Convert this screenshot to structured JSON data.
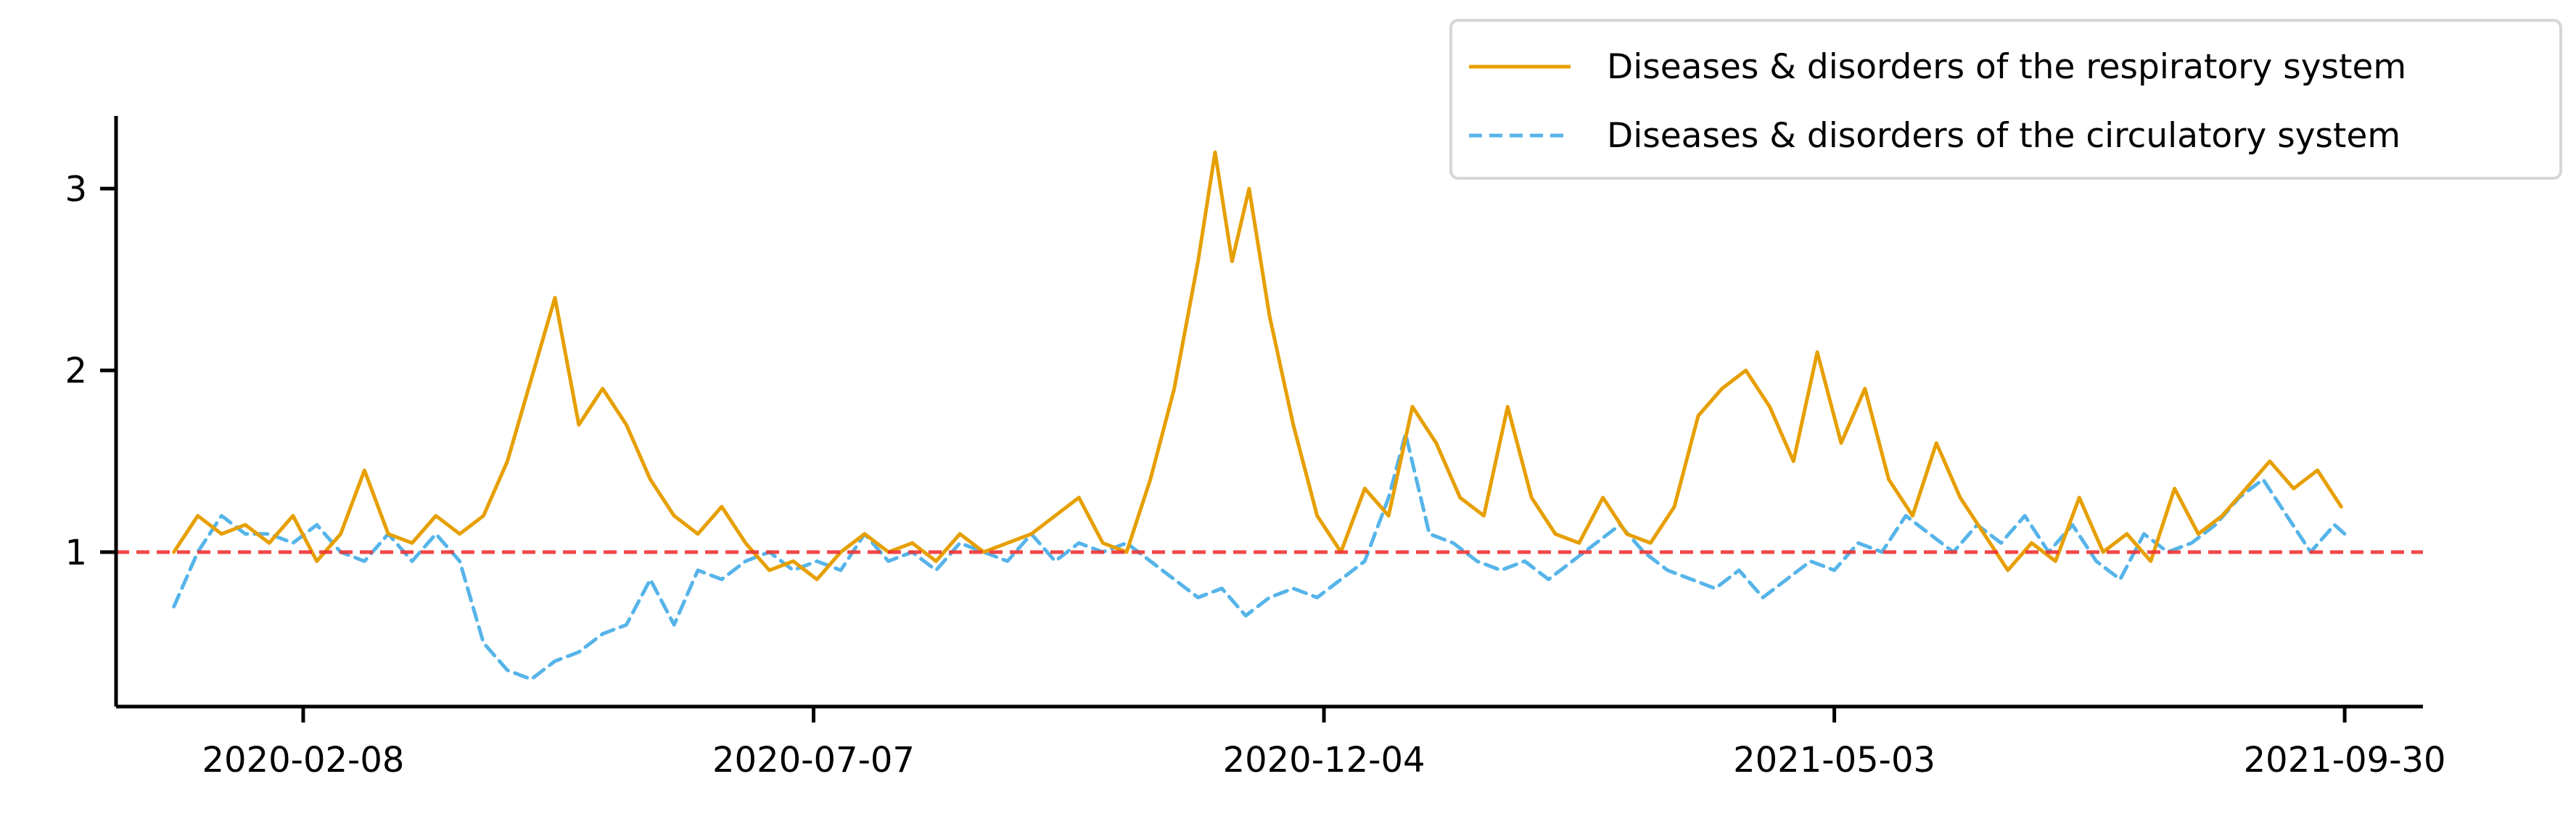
{
  "chart_data": {
    "type": "line",
    "title": "",
    "xlabel": "",
    "ylabel": "",
    "x_ticks": [
      "2020-02-08",
      "2020-07-07",
      "2020-12-04",
      "2021-05-03",
      "2021-09-30"
    ],
    "y_ticks": [
      "1",
      "2",
      "3"
    ],
    "xlim": [
      "2019-12-15",
      "2021-10-23"
    ],
    "ylim": [
      0.15,
      3.4
    ],
    "grid": false,
    "legend_position": "top-right",
    "reference_line": {
      "y": 1,
      "style": "dashed",
      "color": "#ee3333"
    },
    "series": [
      {
        "name": "Diseases & disorders of the respiratory system",
        "color": "#e69f00",
        "style": "solid",
        "points": [
          [
            "2020-01-01",
            1.0
          ],
          [
            "2020-01-08",
            1.2
          ],
          [
            "2020-01-15",
            1.1
          ],
          [
            "2020-01-22",
            1.15
          ],
          [
            "2020-01-29",
            1.05
          ],
          [
            "2020-02-05",
            1.2
          ],
          [
            "2020-02-12",
            0.95
          ],
          [
            "2020-02-19",
            1.1
          ],
          [
            "2020-02-26",
            1.45
          ],
          [
            "2020-03-04",
            1.1
          ],
          [
            "2020-03-11",
            1.05
          ],
          [
            "2020-03-18",
            1.2
          ],
          [
            "2020-03-25",
            1.1
          ],
          [
            "2020-04-01",
            1.2
          ],
          [
            "2020-04-08",
            1.5
          ],
          [
            "2020-04-15",
            1.95
          ],
          [
            "2020-04-22",
            2.4
          ],
          [
            "2020-04-29",
            1.7
          ],
          [
            "2020-05-06",
            1.9
          ],
          [
            "2020-05-13",
            1.7
          ],
          [
            "2020-05-20",
            1.4
          ],
          [
            "2020-05-27",
            1.2
          ],
          [
            "2020-06-03",
            1.1
          ],
          [
            "2020-06-10",
            1.25
          ],
          [
            "2020-06-17",
            1.05
          ],
          [
            "2020-06-24",
            0.9
          ],
          [
            "2020-07-01",
            0.95
          ],
          [
            "2020-07-08",
            0.85
          ],
          [
            "2020-07-15",
            1.0
          ],
          [
            "2020-07-22",
            1.1
          ],
          [
            "2020-07-29",
            1.0
          ],
          [
            "2020-08-05",
            1.05
          ],
          [
            "2020-08-12",
            0.95
          ],
          [
            "2020-08-19",
            1.1
          ],
          [
            "2020-08-26",
            1.0
          ],
          [
            "2020-09-02",
            1.05
          ],
          [
            "2020-09-09",
            1.1
          ],
          [
            "2020-09-16",
            1.2
          ],
          [
            "2020-09-23",
            1.3
          ],
          [
            "2020-09-30",
            1.05
          ],
          [
            "2020-10-07",
            1.0
          ],
          [
            "2020-10-14",
            1.4
          ],
          [
            "2020-10-21",
            1.9
          ],
          [
            "2020-10-28",
            2.6
          ],
          [
            "2020-11-02",
            3.2
          ],
          [
            "2020-11-07",
            2.6
          ],
          [
            "2020-11-12",
            3.0
          ],
          [
            "2020-11-18",
            2.3
          ],
          [
            "2020-11-25",
            1.7
          ],
          [
            "2020-12-02",
            1.2
          ],
          [
            "2020-12-09",
            1.0
          ],
          [
            "2020-12-16",
            1.35
          ],
          [
            "2020-12-23",
            1.2
          ],
          [
            "2020-12-30",
            1.8
          ],
          [
            "2021-01-06",
            1.6
          ],
          [
            "2021-01-13",
            1.3
          ],
          [
            "2021-01-20",
            1.2
          ],
          [
            "2021-01-27",
            1.8
          ],
          [
            "2021-02-03",
            1.3
          ],
          [
            "2021-02-10",
            1.1
          ],
          [
            "2021-02-17",
            1.05
          ],
          [
            "2021-02-24",
            1.3
          ],
          [
            "2021-03-03",
            1.1
          ],
          [
            "2021-03-10",
            1.05
          ],
          [
            "2021-03-17",
            1.25
          ],
          [
            "2021-03-24",
            1.75
          ],
          [
            "2021-03-31",
            1.9
          ],
          [
            "2021-04-07",
            2.0
          ],
          [
            "2021-04-14",
            1.8
          ],
          [
            "2021-04-21",
            1.5
          ],
          [
            "2021-04-28",
            2.1
          ],
          [
            "2021-05-05",
            1.6
          ],
          [
            "2021-05-12",
            1.9
          ],
          [
            "2021-05-19",
            1.4
          ],
          [
            "2021-05-26",
            1.2
          ],
          [
            "2021-06-02",
            1.6
          ],
          [
            "2021-06-09",
            1.3
          ],
          [
            "2021-06-16",
            1.1
          ],
          [
            "2021-06-23",
            0.9
          ],
          [
            "2021-06-30",
            1.05
          ],
          [
            "2021-07-07",
            0.95
          ],
          [
            "2021-07-14",
            1.3
          ],
          [
            "2021-07-21",
            1.0
          ],
          [
            "2021-07-28",
            1.1
          ],
          [
            "2021-08-04",
            0.95
          ],
          [
            "2021-08-11",
            1.35
          ],
          [
            "2021-08-18",
            1.1
          ],
          [
            "2021-08-25",
            1.2
          ],
          [
            "2021-09-01",
            1.35
          ],
          [
            "2021-09-08",
            1.5
          ],
          [
            "2021-09-15",
            1.35
          ],
          [
            "2021-09-22",
            1.45
          ],
          [
            "2021-09-29",
            1.25
          ]
        ]
      },
      {
        "name": "Diseases & disorders of the circulatory system",
        "color": "#56b4e9",
        "style": "dashed",
        "points": [
          [
            "2020-01-01",
            0.7
          ],
          [
            "2020-01-08",
            1.0
          ],
          [
            "2020-01-15",
            1.2
          ],
          [
            "2020-01-22",
            1.1
          ],
          [
            "2020-01-29",
            1.1
          ],
          [
            "2020-02-05",
            1.05
          ],
          [
            "2020-02-12",
            1.15
          ],
          [
            "2020-02-19",
            1.0
          ],
          [
            "2020-02-26",
            0.95
          ],
          [
            "2020-03-04",
            1.1
          ],
          [
            "2020-03-11",
            0.95
          ],
          [
            "2020-03-18",
            1.1
          ],
          [
            "2020-03-25",
            0.95
          ],
          [
            "2020-04-01",
            0.5
          ],
          [
            "2020-04-08",
            0.35
          ],
          [
            "2020-04-15",
            0.3
          ],
          [
            "2020-04-22",
            0.4
          ],
          [
            "2020-04-29",
            0.45
          ],
          [
            "2020-05-06",
            0.55
          ],
          [
            "2020-05-13",
            0.6
          ],
          [
            "2020-05-20",
            0.85
          ],
          [
            "2020-05-27",
            0.6
          ],
          [
            "2020-06-03",
            0.9
          ],
          [
            "2020-06-10",
            0.85
          ],
          [
            "2020-06-17",
            0.95
          ],
          [
            "2020-06-24",
            1.0
          ],
          [
            "2020-07-01",
            0.9
          ],
          [
            "2020-07-08",
            0.95
          ],
          [
            "2020-07-15",
            0.9
          ],
          [
            "2020-07-22",
            1.1
          ],
          [
            "2020-07-29",
            0.95
          ],
          [
            "2020-08-05",
            1.0
          ],
          [
            "2020-08-12",
            0.9
          ],
          [
            "2020-08-19",
            1.05
          ],
          [
            "2020-08-26",
            1.0
          ],
          [
            "2020-09-02",
            0.95
          ],
          [
            "2020-09-09",
            1.1
          ],
          [
            "2020-09-16",
            0.95
          ],
          [
            "2020-09-23",
            1.05
          ],
          [
            "2020-09-30",
            1.0
          ],
          [
            "2020-10-07",
            1.05
          ],
          [
            "2020-10-14",
            0.95
          ],
          [
            "2020-10-21",
            0.85
          ],
          [
            "2020-10-28",
            0.75
          ],
          [
            "2020-11-04",
            0.8
          ],
          [
            "2020-11-11",
            0.65
          ],
          [
            "2020-11-18",
            0.75
          ],
          [
            "2020-11-25",
            0.8
          ],
          [
            "2020-12-02",
            0.75
          ],
          [
            "2020-12-09",
            0.85
          ],
          [
            "2020-12-16",
            0.95
          ],
          [
            "2020-12-23",
            1.3
          ],
          [
            "2020-12-28",
            1.65
          ],
          [
            "2021-01-04",
            1.1
          ],
          [
            "2021-01-11",
            1.05
          ],
          [
            "2021-01-18",
            0.95
          ],
          [
            "2021-01-25",
            0.9
          ],
          [
            "2021-02-01",
            0.95
          ],
          [
            "2021-02-08",
            0.85
          ],
          [
            "2021-02-15",
            0.95
          ],
          [
            "2021-02-22",
            1.05
          ],
          [
            "2021-03-01",
            1.15
          ],
          [
            "2021-03-08",
            1.0
          ],
          [
            "2021-03-15",
            0.9
          ],
          [
            "2021-03-22",
            0.85
          ],
          [
            "2021-03-29",
            0.8
          ],
          [
            "2021-04-05",
            0.9
          ],
          [
            "2021-04-12",
            0.75
          ],
          [
            "2021-04-19",
            0.85
          ],
          [
            "2021-04-26",
            0.95
          ],
          [
            "2021-05-03",
            0.9
          ],
          [
            "2021-05-10",
            1.05
          ],
          [
            "2021-05-17",
            1.0
          ],
          [
            "2021-05-24",
            1.2
          ],
          [
            "2021-05-31",
            1.1
          ],
          [
            "2021-06-07",
            1.0
          ],
          [
            "2021-06-14",
            1.15
          ],
          [
            "2021-06-21",
            1.05
          ],
          [
            "2021-06-28",
            1.2
          ],
          [
            "2021-07-05",
            1.0
          ],
          [
            "2021-07-12",
            1.15
          ],
          [
            "2021-07-19",
            0.95
          ],
          [
            "2021-07-26",
            0.85
          ],
          [
            "2021-08-02",
            1.1
          ],
          [
            "2021-08-09",
            1.0
          ],
          [
            "2021-08-16",
            1.05
          ],
          [
            "2021-08-23",
            1.15
          ],
          [
            "2021-08-30",
            1.3
          ],
          [
            "2021-09-06",
            1.4
          ],
          [
            "2021-09-13",
            1.2
          ],
          [
            "2021-09-20",
            1.0
          ],
          [
            "2021-09-27",
            1.15
          ],
          [
            "2021-09-30",
            1.1
          ]
        ]
      }
    ]
  }
}
